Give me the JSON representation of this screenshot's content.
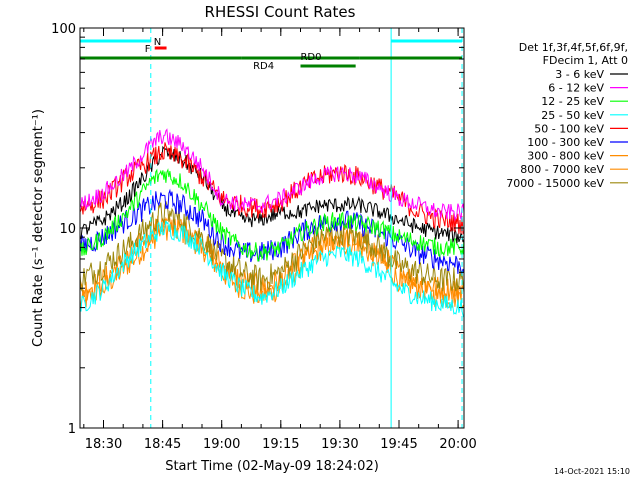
{
  "chart_data": {
    "type": "line",
    "title": "RHESSI Count Rates",
    "xlabel": "Start Time (02-May-09 18:24:02)",
    "ylabel": "Count Rate (s⁻¹ detector segment⁻¹)",
    "yscale": "log",
    "ylim": [
      1,
      100
    ],
    "xlim": [
      "18:24:02",
      "20:01:30"
    ],
    "x_tick_labels": [
      "18:30",
      "18:45",
      "19:00",
      "19:15",
      "19:30",
      "19:45",
      "20:00"
    ],
    "y_tick_labels": [
      "1",
      "10",
      "100"
    ],
    "grid": false,
    "legend_position": "right",
    "legend_header": [
      "Det 1f,3f,4f,5f,6f,9f,",
      "FDecim 1, Att 0"
    ],
    "timestamp": "14-Oct-2021 15:10",
    "x_sample_times": [
      "18:24",
      "18:30",
      "18:36",
      "18:42",
      "18:45",
      "18:50",
      "18:55",
      "19:00",
      "19:05",
      "19:10",
      "19:15",
      "19:20",
      "19:25",
      "19:30",
      "19:35",
      "19:40",
      "19:45",
      "19:50",
      "19:55",
      "20:01"
    ],
    "series": [
      {
        "name": "3 - 6 keV",
        "color": "#000000",
        "values": [
          9.5,
          11,
          14,
          20,
          24,
          22,
          18,
          13,
          11,
          11,
          12,
          12,
          13,
          13,
          13,
          12,
          11,
          10,
          9.5,
          9
        ]
      },
      {
        "name": "6 - 12 keV",
        "color": "#ff00ff",
        "values": [
          13,
          15,
          19,
          26,
          29,
          26,
          20,
          14,
          13,
          13,
          14,
          16,
          18,
          19,
          18,
          16,
          14,
          13,
          12,
          12
        ]
      },
      {
        "name": "12 - 25 keV",
        "color": "#00ff00",
        "values": [
          7.5,
          9,
          12,
          17,
          19,
          17,
          13,
          9.5,
          8,
          7.5,
          8,
          9.5,
          10.5,
          11,
          10.5,
          10,
          9,
          8.5,
          8,
          8
        ]
      },
      {
        "name": "25 - 50 keV",
        "color": "#00ffff",
        "values": [
          4,
          5,
          7,
          9,
          10,
          9.5,
          8,
          6,
          5,
          4.5,
          5,
          6,
          7,
          7.5,
          7,
          6,
          5,
          4.5,
          4.2,
          4
        ]
      },
      {
        "name": "50 - 100 keV",
        "color": "#ff0000",
        "values": [
          12.5,
          14,
          18,
          22,
          24,
          22,
          18,
          14,
          13,
          12.5,
          13.5,
          16,
          18,
          19,
          18,
          16,
          14,
          12,
          11,
          10.5
        ]
      },
      {
        "name": "100 - 300 keV",
        "color": "#0000ff",
        "values": [
          8,
          9,
          11,
          13,
          14,
          13,
          11,
          8.5,
          7.5,
          7.5,
          8,
          9.5,
          10.5,
          11,
          10.5,
          9.5,
          8.5,
          7.5,
          7,
          6.5
        ]
      },
      {
        "name": "300 - 800 keV",
        "color": "#ff8c00",
        "values": [
          4.2,
          5,
          6.5,
          8.5,
          10,
          9.5,
          8,
          6,
          5,
          4.5,
          5,
          6.5,
          7.8,
          8.5,
          8,
          7,
          5.5,
          5,
          4.5,
          4.5
        ]
      },
      {
        "name": "800 - 7000 keV",
        "color": "#ff8c00",
        "values": [
          4.8,
          5.5,
          7,
          9.5,
          10.5,
          10,
          8.5,
          6.5,
          5.5,
          5,
          5.5,
          7,
          8.5,
          9,
          8.5,
          7.5,
          6,
          5.5,
          5,
          5
        ]
      },
      {
        "name": "7000 - 15000 keV",
        "color": "#9b870c",
        "values": [
          5.5,
          6.5,
          8,
          10.5,
          12,
          11,
          9,
          7,
          6,
          5.5,
          6,
          7.5,
          9,
          9.5,
          9,
          8,
          6.5,
          6,
          5.5,
          5.5
        ]
      }
    ],
    "state_bars": [
      {
        "label": "N",
        "color": "#00ffff",
        "segments": [
          [
            "18:24",
            "18:42"
          ],
          [
            "19:43",
            "20:01"
          ]
        ]
      },
      {
        "label": "F",
        "color": "#ff0000",
        "segments": [
          [
            "18:43",
            "18:46"
          ]
        ]
      },
      {
        "label": "",
        "color": "#008000",
        "segments": [
          [
            "18:24",
            "19:05"
          ],
          [
            "19:35",
            "20:01"
          ]
        ]
      },
      {
        "label": "RD0",
        "color": "#008000",
        "segments": [
          [
            "19:05",
            "19:35"
          ]
        ]
      },
      {
        "label": "RD4",
        "color": "#008000",
        "segments": [
          [
            "19:20",
            "19:34"
          ]
        ]
      }
    ],
    "vertical_lines": [
      {
        "time": "18:42",
        "style": "dashed",
        "color": "#00ffff"
      },
      {
        "time": "19:43",
        "style": "solid",
        "color": "#00ffff"
      },
      {
        "time": "20:01",
        "style": "dashed",
        "color": "#00ffff"
      }
    ]
  }
}
